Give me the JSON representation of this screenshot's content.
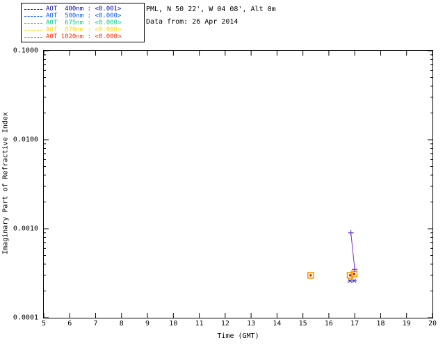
{
  "header": {
    "line1": "PML, N 50 22', W 04 08', Alt 0m",
    "line2": "Data from: 26 Apr 2014"
  },
  "legend": {
    "items": [
      {
        "label": "AOT  400nm : <0.001>",
        "color": "#0000a0"
      },
      {
        "label": "AOT  500nm : <0.000>",
        "color": "#0055ff"
      },
      {
        "label": "AOT  675nm : <0.000>",
        "color": "#00cc88"
      },
      {
        "label": "AOT  870nm : <0.000>",
        "color": "#ffd400"
      },
      {
        "label": "AOT 1020nm : <0.000>",
        "color": "#ff2a00"
      }
    ]
  },
  "chart_data": {
    "type": "scatter",
    "title": "",
    "xlabel": "Time (GMT)",
    "ylabel": "Imaginary Part of Refractive Index",
    "x_axis": {
      "min": 5,
      "max": 20,
      "ticks": [
        5,
        6,
        7,
        8,
        9,
        10,
        11,
        12,
        13,
        14,
        15,
        16,
        17,
        18,
        19,
        20
      ]
    },
    "y_axis": {
      "scale": "log",
      "min": 0.0001,
      "max": 0.1,
      "tick_values": [
        0.1,
        0.01,
        0.001,
        0.0001
      ],
      "tick_labels": [
        "0.1000",
        "0.0100",
        "0.0010",
        "0.0001"
      ]
    },
    "grid": false,
    "legend_position": "top-left-outside",
    "series": [
      {
        "name": "square-markers",
        "marker": "square",
        "line": false,
        "color": "#ff9900",
        "points": [
          [
            15.3,
            0.0003
          ],
          [
            16.82,
            0.0003
          ],
          [
            16.98,
            0.00031
          ]
        ]
      },
      {
        "name": "center-dots",
        "marker": "dot",
        "line": false,
        "color": "#cc2200",
        "points": [
          [
            15.3,
            0.0003
          ],
          [
            16.82,
            0.0003
          ],
          [
            16.98,
            0.00031
          ]
        ]
      },
      {
        "name": "plus-line-segment",
        "marker": "plus",
        "line": true,
        "color": "#7733cc",
        "points": [
          [
            16.85,
            0.0009
          ],
          [
            17.0,
            0.00035
          ]
        ]
      },
      {
        "name": "asterisk-markers",
        "marker": "asterisk",
        "line": false,
        "color": "#4433bb",
        "points": [
          [
            16.82,
            0.00026
          ],
          [
            16.98,
            0.00026
          ]
        ]
      }
    ]
  }
}
